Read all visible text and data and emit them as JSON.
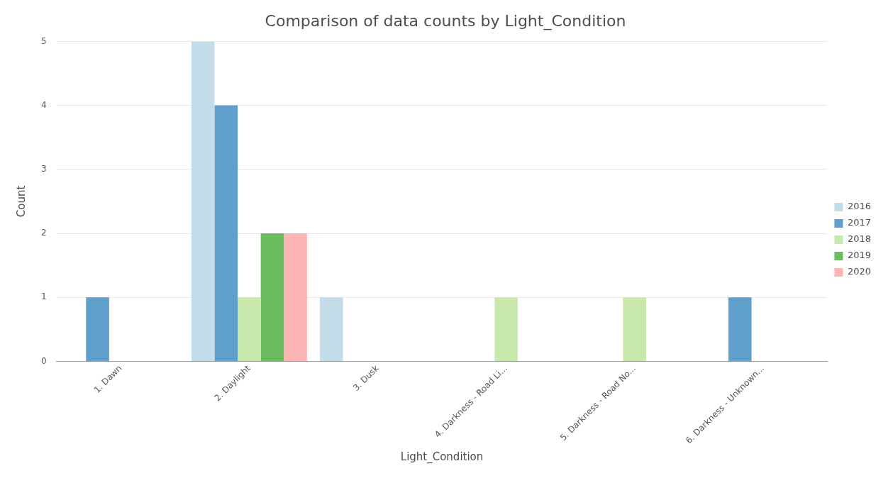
{
  "chart_data": {
    "type": "bar",
    "title": "Comparison of data counts by Light_Condition",
    "xlabel": "Light_Condition",
    "ylabel": "Count",
    "categories": [
      "1. Dawn",
      "2. Daylight",
      "3. Dusk",
      "4. Darkness - Road Li...",
      "5. Darkness - Road No...",
      "6. Darkness - Unknown..."
    ],
    "series": [
      {
        "name": "2016",
        "color": "#c2dcea",
        "values": [
          0,
          5,
          1,
          0,
          0,
          0
        ]
      },
      {
        "name": "2017",
        "color": "#5f9fcb",
        "values": [
          1,
          4,
          0,
          0,
          0,
          1
        ]
      },
      {
        "name": "2018",
        "color": "#c9e8ae",
        "values": [
          0,
          1,
          0,
          1,
          1,
          0
        ]
      },
      {
        "name": "2019",
        "color": "#6abc5e",
        "values": [
          0,
          2,
          0,
          0,
          0,
          0
        ]
      },
      {
        "name": "2020",
        "color": "#fdb6b5",
        "values": [
          0,
          2,
          0,
          0,
          0,
          0
        ]
      }
    ],
    "ylim": [
      0,
      5
    ],
    "yticks": [
      0,
      1,
      2,
      3,
      4,
      5
    ],
    "grid": "y",
    "legend": "right"
  }
}
